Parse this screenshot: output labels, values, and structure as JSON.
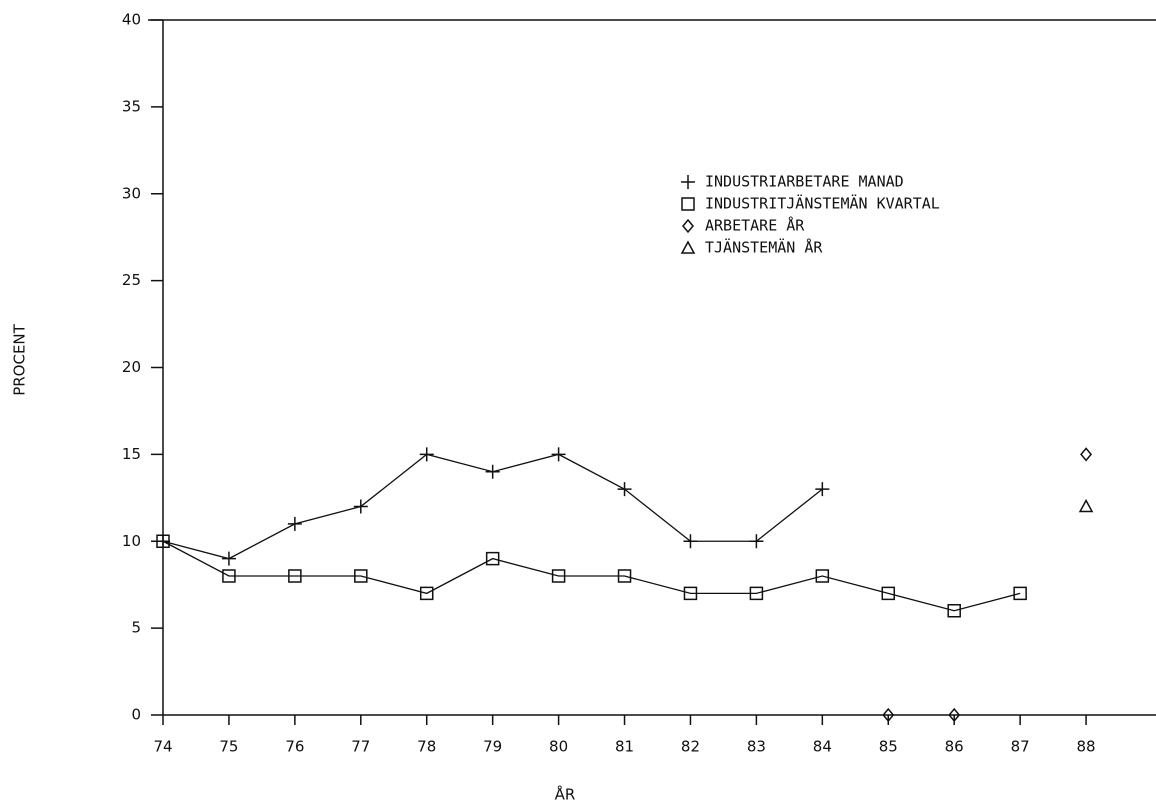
{
  "chart_data": {
    "type": "line",
    "y_label": "PROCENT",
    "x_label": "ÅR",
    "x": [
      74,
      75,
      76,
      77,
      78,
      79,
      80,
      81,
      82,
      83,
      84,
      85,
      86,
      87,
      88
    ],
    "series": [
      {
        "name": "INDUSTRIARBETARE MANAD",
        "color": "#111111",
        "marker": "plus",
        "connected": true,
        "values": [
          10,
          9,
          11,
          12,
          15,
          14,
          15,
          13,
          10,
          10,
          13,
          null,
          null,
          null,
          null
        ]
      },
      {
        "name": "INDUSTRITJÄNSTEMÄN KVARTAL",
        "color": "#111111",
        "marker": "square",
        "connected": true,
        "values": [
          10,
          8,
          8,
          8,
          7,
          9,
          8,
          8,
          7,
          7,
          8,
          7,
          6,
          7,
          null
        ]
      },
      {
        "name": "ARBETARE ÅR",
        "color": "#111111",
        "marker": "diamond",
        "connected": false,
        "values": [
          null,
          null,
          null,
          null,
          null,
          null,
          null,
          null,
          null,
          null,
          null,
          0,
          0,
          null,
          15
        ]
      },
      {
        "name": "TJÄNSTEMÄN ÅR",
        "color": "#111111",
        "marker": "triangle",
        "connected": false,
        "values": [
          null,
          null,
          null,
          null,
          null,
          null,
          null,
          null,
          null,
          null,
          null,
          null,
          null,
          null,
          12
        ]
      }
    ],
    "xlim": [
      74,
      89
    ],
    "xticks": [
      74,
      75,
      76,
      77,
      78,
      79,
      80,
      81,
      82,
      83,
      84,
      85,
      86,
      87,
      88
    ],
    "ylim": [
      0,
      40
    ],
    "yticks": [
      0,
      5,
      10,
      15,
      20,
      25,
      30,
      35,
      40
    ],
    "grid": false
  }
}
